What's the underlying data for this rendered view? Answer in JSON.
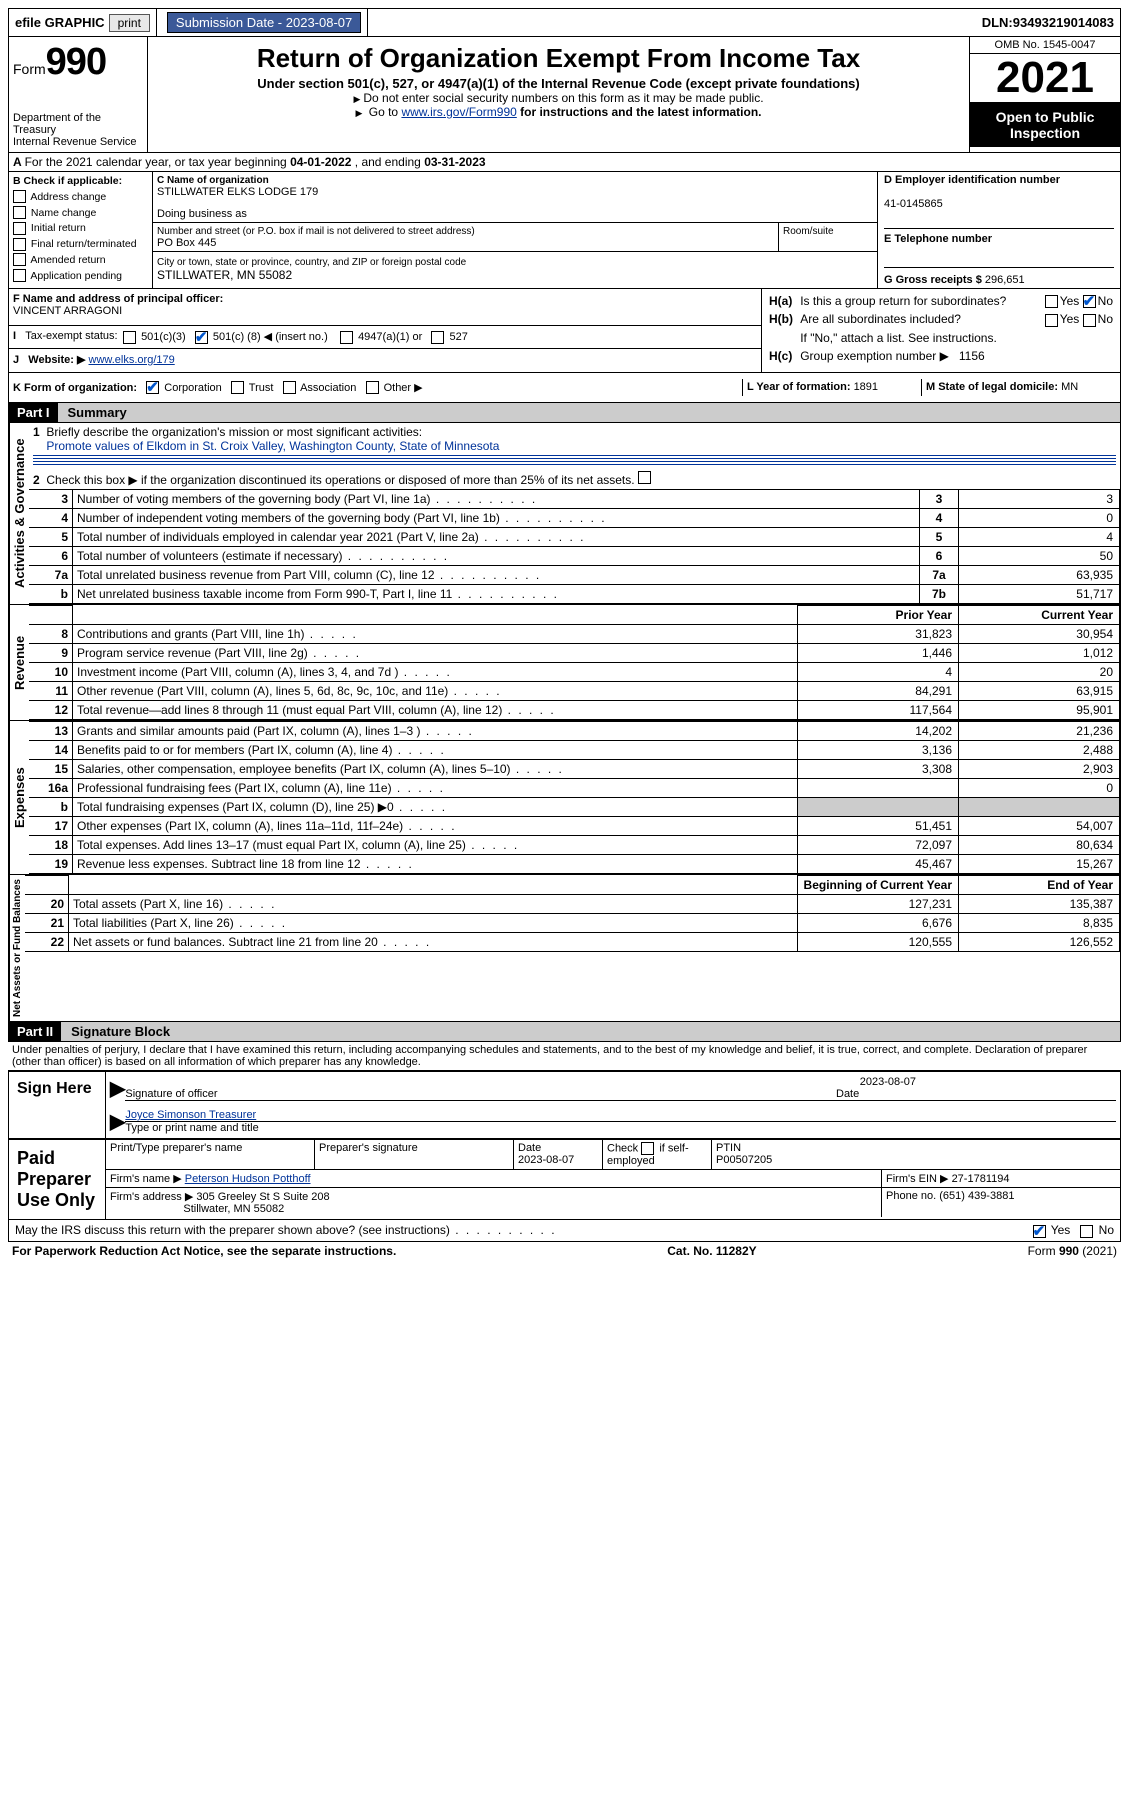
{
  "topbar": {
    "efile": "efile GRAPHIC",
    "print": "print",
    "submission_label": "Submission Date - ",
    "submission_date": "2023-08-07",
    "dln_label": "DLN: ",
    "dln": "93493219014083"
  },
  "header": {
    "form_word": "Form",
    "form_num": "990",
    "dept": "Department of the Treasury",
    "irs": "Internal Revenue Service",
    "title": "Return of Organization Exempt From Income Tax",
    "sub": "Under section 501(c), 527, or 4947(a)(1) of the Internal Revenue Code (except private foundations)",
    "note1": "Do not enter social security numbers on this form as it may be made public.",
    "note2_pre": "Go to ",
    "note2_link": "www.irs.gov/Form990",
    "note2_post": " for instructions and the latest information.",
    "omb": "OMB No. 1545-0047",
    "year": "2021",
    "open": "Open to Public Inspection"
  },
  "lineA": {
    "text_pre": "For the 2021 calendar year, or tax year beginning ",
    "begin": "04-01-2022",
    "mid": " , and ending ",
    "end": "03-31-2023"
  },
  "sectionB": {
    "title": "B Check if applicable:",
    "items": [
      "Address change",
      "Name change",
      "Initial return",
      "Final return/terminated",
      "Amended return",
      "Application pending"
    ]
  },
  "sectionC": {
    "name_label": "C Name of organization",
    "name": "STILLWATER ELKS LODGE 179",
    "dba_label": "Doing business as",
    "street_label": "Number and street (or P.O. box if mail is not delivered to street address)",
    "room_label": "Room/suite",
    "street": "PO Box 445",
    "city_label": "City or town, state or province, country, and ZIP or foreign postal code",
    "city": "STILLWATER, MN  55082"
  },
  "sectionD": {
    "label": "D Employer identification number",
    "val": "41-0145865"
  },
  "sectionE": {
    "label": "E Telephone number",
    "val": ""
  },
  "sectionG": {
    "label": "G Gross receipts $ ",
    "val": "296,651"
  },
  "sectionF": {
    "label": "F Name and address of principal officer:",
    "val": "VINCENT ARRAGONI"
  },
  "sectionH": {
    "a": "Is this a group return for subordinates?",
    "b": "Are all subordinates included?",
    "b_note": "If \"No,\" attach a list. See instructions.",
    "c_label": "Group exemption number",
    "c_val": "1156",
    "yes": "Yes",
    "no": "No"
  },
  "sectionI": {
    "label": "Tax-exempt status:",
    "o1": "501(c)(3)",
    "o2_pre": "501(c) (",
    "o2_mid": "8",
    "o2_post": ") ◀ (insert no.)",
    "o3": "4947(a)(1) or",
    "o4": "527"
  },
  "sectionJ": {
    "label": "Website:",
    "val": "www.elks.org/179"
  },
  "sectionK": {
    "label": "K Form of organization:",
    "o1": "Corporation",
    "o2": "Trust",
    "o3": "Association",
    "o4": "Other"
  },
  "sectionL": {
    "label": "L Year of formation: ",
    "val": "1891"
  },
  "sectionM": {
    "label": "M State of legal domicile: ",
    "val": "MN"
  },
  "part1": {
    "hdr": "Part I",
    "title": "Summary",
    "q1_label": "Briefly describe the organization's mission or most significant activities:",
    "q1_val": "Promote values of Elkdom in St. Croix Valley, Washington County, State of Minnesota",
    "q2": "Check this box ▶  if the organization discontinued its operations or disposed of more than 25% of its net assets.",
    "rows_ag": [
      {
        "n": "3",
        "t": "Number of voting members of the governing body (Part VI, line 1a)",
        "box": "3",
        "v": "3"
      },
      {
        "n": "4",
        "t": "Number of independent voting members of the governing body (Part VI, line 1b)",
        "box": "4",
        "v": "0"
      },
      {
        "n": "5",
        "t": "Total number of individuals employed in calendar year 2021 (Part V, line 2a)",
        "box": "5",
        "v": "4"
      },
      {
        "n": "6",
        "t": "Total number of volunteers (estimate if necessary)",
        "box": "6",
        "v": "50"
      },
      {
        "n": "7a",
        "t": "Total unrelated business revenue from Part VIII, column (C), line 12",
        "box": "7a",
        "v": "63,935"
      },
      {
        "n": "b",
        "t": "Net unrelated business taxable income from Form 990-T, Part I, line 11",
        "box": "7b",
        "v": "51,717"
      }
    ],
    "col_prior": "Prior Year",
    "col_current": "Current Year",
    "rows_rev": [
      {
        "n": "8",
        "t": "Contributions and grants (Part VIII, line 1h)",
        "p": "31,823",
        "c": "30,954"
      },
      {
        "n": "9",
        "t": "Program service revenue (Part VIII, line 2g)",
        "p": "1,446",
        "c": "1,012"
      },
      {
        "n": "10",
        "t": "Investment income (Part VIII, column (A), lines 3, 4, and 7d )",
        "p": "4",
        "c": "20"
      },
      {
        "n": "11",
        "t": "Other revenue (Part VIII, column (A), lines 5, 6d, 8c, 9c, 10c, and 11e)",
        "p": "84,291",
        "c": "63,915"
      },
      {
        "n": "12",
        "t": "Total revenue—add lines 8 through 11 (must equal Part VIII, column (A), line 12)",
        "p": "117,564",
        "c": "95,901"
      }
    ],
    "rows_exp": [
      {
        "n": "13",
        "t": "Grants and similar amounts paid (Part IX, column (A), lines 1–3 )",
        "p": "14,202",
        "c": "21,236"
      },
      {
        "n": "14",
        "t": "Benefits paid to or for members (Part IX, column (A), line 4)",
        "p": "3,136",
        "c": "2,488"
      },
      {
        "n": "15",
        "t": "Salaries, other compensation, employee benefits (Part IX, column (A), lines 5–10)",
        "p": "3,308",
        "c": "2,903"
      },
      {
        "n": "16a",
        "t": "Professional fundraising fees (Part IX, column (A), line 11e)",
        "p": "",
        "c": "0"
      },
      {
        "n": "b",
        "t": "Total fundraising expenses (Part IX, column (D), line 25) ▶0",
        "p": "shade",
        "c": "shade"
      },
      {
        "n": "17",
        "t": "Other expenses (Part IX, column (A), lines 11a–11d, 11f–24e)",
        "p": "51,451",
        "c": "54,007"
      },
      {
        "n": "18",
        "t": "Total expenses. Add lines 13–17 (must equal Part IX, column (A), line 25)",
        "p": "72,097",
        "c": "80,634"
      },
      {
        "n": "19",
        "t": "Revenue less expenses. Subtract line 18 from line 12",
        "p": "45,467",
        "c": "15,267"
      }
    ],
    "col_begin": "Beginning of Current Year",
    "col_end": "End of Year",
    "rows_na": [
      {
        "n": "20",
        "t": "Total assets (Part X, line 16)",
        "p": "127,231",
        "c": "135,387"
      },
      {
        "n": "21",
        "t": "Total liabilities (Part X, line 26)",
        "p": "6,676",
        "c": "8,835"
      },
      {
        "n": "22",
        "t": "Net assets or fund balances. Subtract line 21 from line 20",
        "p": "120,555",
        "c": "126,552"
      }
    ],
    "vlab_ag": "Activities & Governance",
    "vlab_rev": "Revenue",
    "vlab_exp": "Expenses",
    "vlab_na": "Net Assets or Fund Balances"
  },
  "part2": {
    "hdr": "Part II",
    "title": "Signature Block",
    "decl": "Under penalties of perjury, I declare that I have examined this return, including accompanying schedules and statements, and to the best of my knowledge and belief, it is true, correct, and complete. Declaration of preparer (other than officer) is based on all information of which preparer has any knowledge.",
    "sign_here": "Sign Here",
    "sig_officer": "Signature of officer",
    "sig_date": "Date",
    "sig_date_val": "2023-08-07",
    "sig_name_val": "Joyce Simonson  Treasurer",
    "sig_name_label": "Type or print name and title",
    "paid": "Paid Preparer Use Only",
    "prep_name_label": "Print/Type preparer's name",
    "prep_sig_label": "Preparer's signature",
    "prep_date_label": "Date",
    "prep_date_val": "2023-08-07",
    "check_if": "Check",
    "self_emp": "if self-employed",
    "ptin_label": "PTIN",
    "ptin": "P00507205",
    "firm_name_label": "Firm's name    ▶ ",
    "firm_name": "Peterson Hudson Potthoff",
    "firm_ein_label": "Firm's EIN ▶ ",
    "firm_ein": "27-1781194",
    "firm_addr_label": "Firm's address ▶ ",
    "firm_addr1": "305 Greeley St S Suite 208",
    "firm_addr2": "Stillwater, MN  55082",
    "phone_label": "Phone no. ",
    "phone": "(651) 439-3881",
    "may_irs": "May the IRS discuss this return with the preparer shown above? (see instructions)",
    "yes": "Yes",
    "no": "No"
  },
  "footer": {
    "left": "For Paperwork Reduction Act Notice, see the separate instructions.",
    "mid": "Cat. No. 11282Y",
    "right": "Form 990 (2021)"
  }
}
